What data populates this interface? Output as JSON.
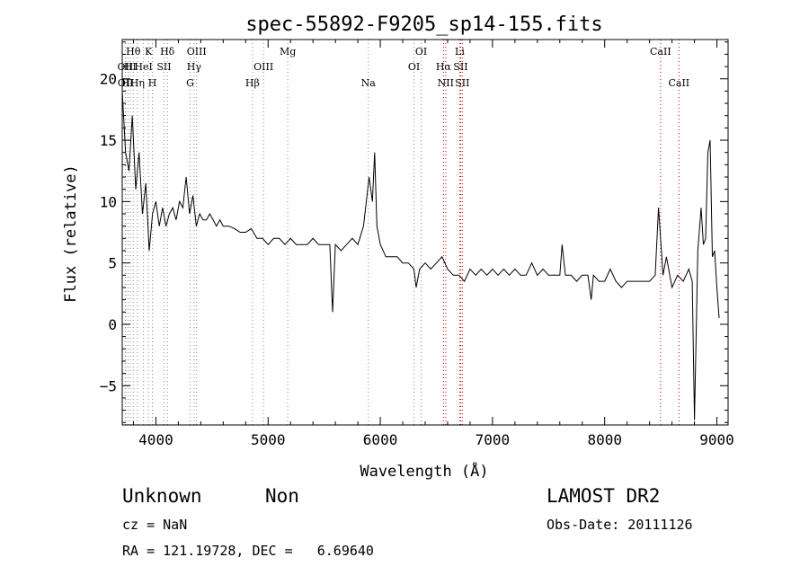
{
  "chart_data": {
    "type": "line",
    "title": "spec-55892-F9205_sp14-155.fits",
    "xlabel": "Wavelength (Å)",
    "ylabel": "Flux (relative)",
    "xlim": [
      3700,
      9100
    ],
    "ylim": [
      -8.2,
      23.2
    ],
    "xticks": [
      4000,
      5000,
      6000,
      7000,
      8000,
      9000
    ],
    "yticks": [
      -5,
      0,
      5,
      10,
      15,
      20
    ],
    "grid": false,
    "series": [
      {
        "x": [
          3700,
          3730,
          3760,
          3790,
          3820,
          3850,
          3880,
          3910,
          3940,
          3970,
          4000,
          4030,
          4060,
          4090,
          4120,
          4150,
          4180,
          4210,
          4240,
          4270,
          4300,
          4330,
          4360,
          4390,
          4420,
          4450,
          4480,
          4510,
          4540,
          4570,
          4600,
          4650,
          4700,
          4750,
          4800,
          4850,
          4900,
          4950,
          5000,
          5050,
          5100,
          5150,
          5200,
          5250,
          5300,
          5350,
          5400,
          5450,
          5500,
          5550,
          5575,
          5600,
          5650,
          5700,
          5750,
          5800,
          5850,
          5900,
          5930,
          5950,
          5970,
          6000,
          6050,
          6100,
          6150,
          6200,
          6250,
          6300,
          6320,
          6350,
          6400,
          6450,
          6500,
          6550,
          6600,
          6650,
          6700,
          6750,
          6800,
          6850,
          6900,
          6950,
          7000,
          7050,
          7100,
          7150,
          7200,
          7250,
          7300,
          7350,
          7400,
          7450,
          7500,
          7550,
          7600,
          7620,
          7650,
          7700,
          7750,
          7800,
          7850,
          7880,
          7900,
          7950,
          8000,
          8050,
          8100,
          8150,
          8200,
          8250,
          8300,
          8350,
          8400,
          8450,
          8480,
          8520,
          8550,
          8600,
          8650,
          8700,
          8750,
          8780,
          8800,
          8830,
          8860,
          8880,
          8900,
          8920,
          8940,
          8960,
          8980,
          9000,
          9020
        ],
        "y": [
          19.0,
          14.0,
          12.5,
          17.0,
          11.0,
          14.0,
          9.0,
          11.5,
          6.0,
          9.0,
          10.0,
          8.0,
          9.5,
          8.0,
          9.0,
          9.5,
          8.5,
          10.0,
          9.5,
          12.0,
          9.0,
          10.5,
          8.0,
          9.0,
          8.5,
          8.5,
          9.0,
          8.5,
          8.0,
          8.5,
          8.0,
          8.0,
          7.8,
          7.5,
          7.5,
          7.8,
          7.0,
          7.0,
          6.5,
          7.0,
          7.0,
          6.5,
          7.0,
          6.5,
          6.5,
          6.5,
          7.0,
          6.5,
          6.5,
          6.5,
          1.0,
          6.5,
          6.0,
          6.5,
          7.0,
          6.5,
          8.0,
          12.0,
          10.0,
          14.0,
          8.0,
          6.5,
          5.5,
          5.5,
          5.5,
          5.0,
          5.0,
          4.5,
          3.0,
          4.5,
          5.0,
          4.5,
          5.0,
          5.5,
          4.5,
          4.0,
          4.0,
          3.5,
          4.5,
          4.0,
          4.5,
          4.0,
          4.5,
          4.0,
          4.5,
          4.0,
          4.5,
          4.0,
          4.0,
          5.0,
          4.0,
          4.5,
          4.0,
          4.0,
          4.0,
          6.5,
          4.0,
          4.0,
          3.5,
          4.0,
          4.0,
          2.0,
          4.0,
          3.5,
          3.5,
          4.5,
          3.5,
          3.0,
          3.5,
          3.5,
          3.5,
          3.5,
          3.5,
          4.0,
          9.5,
          4.0,
          5.5,
          3.0,
          4.0,
          3.5,
          4.5,
          3.5,
          -7.8,
          6.0,
          9.5,
          6.5,
          7.0,
          14.0,
          15.0,
          5.5,
          6.0,
          3.0,
          0.5
        ]
      }
    ],
    "lines": [
      {
        "label": "Hθ",
        "x": 3798,
        "row": 0,
        "color": "#888888"
      },
      {
        "label": "OII",
        "x": 3727,
        "row": 1,
        "color": "#888888"
      },
      {
        "label": "OII",
        "x": 3729,
        "row": 2,
        "color": "#888888"
      },
      {
        "label": "HI",
        "x": 3771,
        "row": 1,
        "color": "#888888"
      },
      {
        "label": "HI",
        "x": 3750,
        "row": 2,
        "color": "#888888"
      },
      {
        "label": "Hη",
        "x": 3835,
        "row": 2,
        "color": "#888888"
      },
      {
        "label": "K",
        "x": 3934,
        "row": 0,
        "color": "#888888"
      },
      {
        "label": "HeI",
        "x": 3889,
        "row": 1,
        "color": "#888888"
      },
      {
        "label": "H",
        "x": 3969,
        "row": 2,
        "color": "#888888"
      },
      {
        "label": "SII",
        "x": 4072,
        "row": 1,
        "color": "#888888"
      },
      {
        "label": "Hδ",
        "x": 4102,
        "row": 0,
        "color": "#888888"
      },
      {
        "label": "OIII",
        "x": 4363,
        "row": 0,
        "color": "#888888"
      },
      {
        "label": "Hγ",
        "x": 4340,
        "row": 1,
        "color": "#888888"
      },
      {
        "label": "G",
        "x": 4305,
        "row": 2,
        "color": "#888888"
      },
      {
        "label": "Mg",
        "x": 5175,
        "row": 0,
        "color": "#888888"
      },
      {
        "label": "OIII",
        "x": 4959,
        "row": 1,
        "color": "#888888"
      },
      {
        "label": "Hβ",
        "x": 4861,
        "row": 2,
        "color": "#888888"
      },
      {
        "label": "Na",
        "x": 5893,
        "row": 2,
        "color": "#888888"
      },
      {
        "label": "OI",
        "x": 6364,
        "row": 0,
        "color": "#888888"
      },
      {
        "label": "OI",
        "x": 6300,
        "row": 1,
        "color": "#888888"
      },
      {
        "label": "Li",
        "x": 6708,
        "row": 0,
        "color": "#cc0000"
      },
      {
        "label": "Hα",
        "x": 6563,
        "row": 1,
        "color": "#cc0000"
      },
      {
        "label": "SII",
        "x": 6716,
        "row": 1,
        "color": "#cc0000"
      },
      {
        "label": "NII",
        "x": 6583,
        "row": 2,
        "color": "#cc0000"
      },
      {
        "label": "SII",
        "x": 6731,
        "row": 2,
        "color": "#cc0000"
      },
      {
        "label": "CaII",
        "x": 8498,
        "row": 0,
        "color": "#cc0000"
      },
      {
        "label": "CaII",
        "x": 8662,
        "row": 2,
        "color": "#cc0000"
      }
    ]
  },
  "info": {
    "class": "Unknown",
    "subclass": "Non",
    "survey": "LAMOST DR2",
    "cz": "cz = NaN",
    "obs_date": "Obs-Date: 20111126",
    "radec": "RA = 121.19728, DEC =   6.69640"
  }
}
